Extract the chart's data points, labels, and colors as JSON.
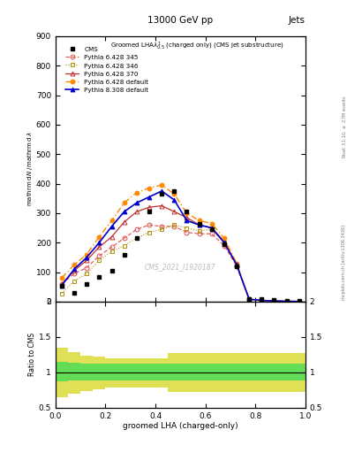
{
  "title_top": "13000 GeV pp",
  "title_right": "Jets",
  "plot_title": "Groomed LHA$\\lambda^1_{0.5}$ (charged only) (CMS jet substructure)",
  "xlabel": "groomed LHA (charged-only)",
  "ylabel_ratio": "Ratio to CMS",
  "watermark": "CMS_2021_I1920187",
  "right_label": "Rivet 3.1.10, $\\geq$ 2.7M events",
  "right_label2": "mcplots.cern.ch [arXiv:1306.3436]",
  "ylim_main": [
    0,
    900
  ],
  "ylim_ratio": [
    0.5,
    2.0
  ],
  "x_data": [
    0.025,
    0.075,
    0.125,
    0.175,
    0.225,
    0.275,
    0.325,
    0.375,
    0.425,
    0.475,
    0.525,
    0.575,
    0.625,
    0.675,
    0.725,
    0.775,
    0.825,
    0.875,
    0.925,
    0.975
  ],
  "cms_data": [
    55,
    30,
    60,
    85,
    105,
    160,
    215,
    305,
    365,
    375,
    305,
    265,
    245,
    195,
    120,
    8,
    8,
    5,
    3,
    3
  ],
  "py6_345": [
    60,
    95,
    115,
    155,
    185,
    215,
    245,
    260,
    255,
    255,
    235,
    230,
    230,
    190,
    120,
    8,
    4,
    2,
    1,
    0.5
  ],
  "py6_346": [
    28,
    70,
    95,
    140,
    170,
    190,
    215,
    235,
    245,
    260,
    250,
    240,
    245,
    200,
    125,
    8,
    4,
    2,
    1,
    0.5
  ],
  "py6_370": [
    60,
    105,
    140,
    185,
    220,
    270,
    305,
    320,
    325,
    305,
    285,
    260,
    250,
    205,
    125,
    8,
    4,
    2,
    1,
    0.5
  ],
  "py6_default": [
    80,
    125,
    160,
    220,
    275,
    335,
    370,
    385,
    395,
    365,
    300,
    275,
    265,
    215,
    130,
    8,
    4,
    2,
    1,
    0.5
  ],
  "py8_default": [
    55,
    110,
    150,
    200,
    255,
    305,
    335,
    355,
    375,
    345,
    275,
    260,
    250,
    200,
    125,
    8,
    4,
    2,
    1,
    0.5
  ],
  "ratio_x": [
    0.0,
    0.05,
    0.1,
    0.15,
    0.2,
    0.25,
    0.3,
    0.35,
    0.4,
    0.45,
    0.5,
    0.55,
    0.6,
    0.65,
    0.7,
    0.75,
    0.8,
    0.85,
    0.9,
    0.95,
    1.0
  ],
  "ratio_green_upper": [
    1.15,
    1.13,
    1.12,
    1.12,
    1.12,
    1.12,
    1.12,
    1.12,
    1.12,
    1.12,
    1.12,
    1.12,
    1.12,
    1.12,
    1.12,
    1.12,
    1.12,
    1.12,
    1.12,
    1.12,
    1.12
  ],
  "ratio_green_lower": [
    0.87,
    0.88,
    0.88,
    0.88,
    0.88,
    0.88,
    0.88,
    0.88,
    0.88,
    0.88,
    0.88,
    0.88,
    0.88,
    0.88,
    0.88,
    0.88,
    0.88,
    0.88,
    0.88,
    0.88,
    0.88
  ],
  "ratio_yellow_upper": [
    1.35,
    1.28,
    1.24,
    1.22,
    1.2,
    1.2,
    1.2,
    1.2,
    1.2,
    1.27,
    1.27,
    1.27,
    1.27,
    1.27,
    1.27,
    1.27,
    1.27,
    1.27,
    1.27,
    1.27,
    1.27
  ],
  "ratio_yellow_lower": [
    0.65,
    0.7,
    0.74,
    0.76,
    0.78,
    0.78,
    0.78,
    0.78,
    0.78,
    0.72,
    0.72,
    0.72,
    0.72,
    0.72,
    0.72,
    0.72,
    0.72,
    0.72,
    0.72,
    0.72,
    0.72
  ],
  "color_py6_345": "#e05050",
  "color_py6_346": "#b0900a",
  "color_py6_370": "#c03030",
  "color_py6_default": "#ff8800",
  "color_py8_default": "#0000cc",
  "color_cms": "#000000",
  "color_green": "#55dd55",
  "color_yellow": "#dddd44",
  "color_watermark": "#bbbbbb",
  "yticks_main": [
    0,
    100,
    200,
    300,
    400,
    500,
    600,
    700,
    800,
    900
  ],
  "yticks_ratio": [
    0.5,
    1.0,
    1.5,
    2.0
  ],
  "ytick_ratio_labels": [
    "0.5",
    "1",
    "1.5",
    "2"
  ]
}
